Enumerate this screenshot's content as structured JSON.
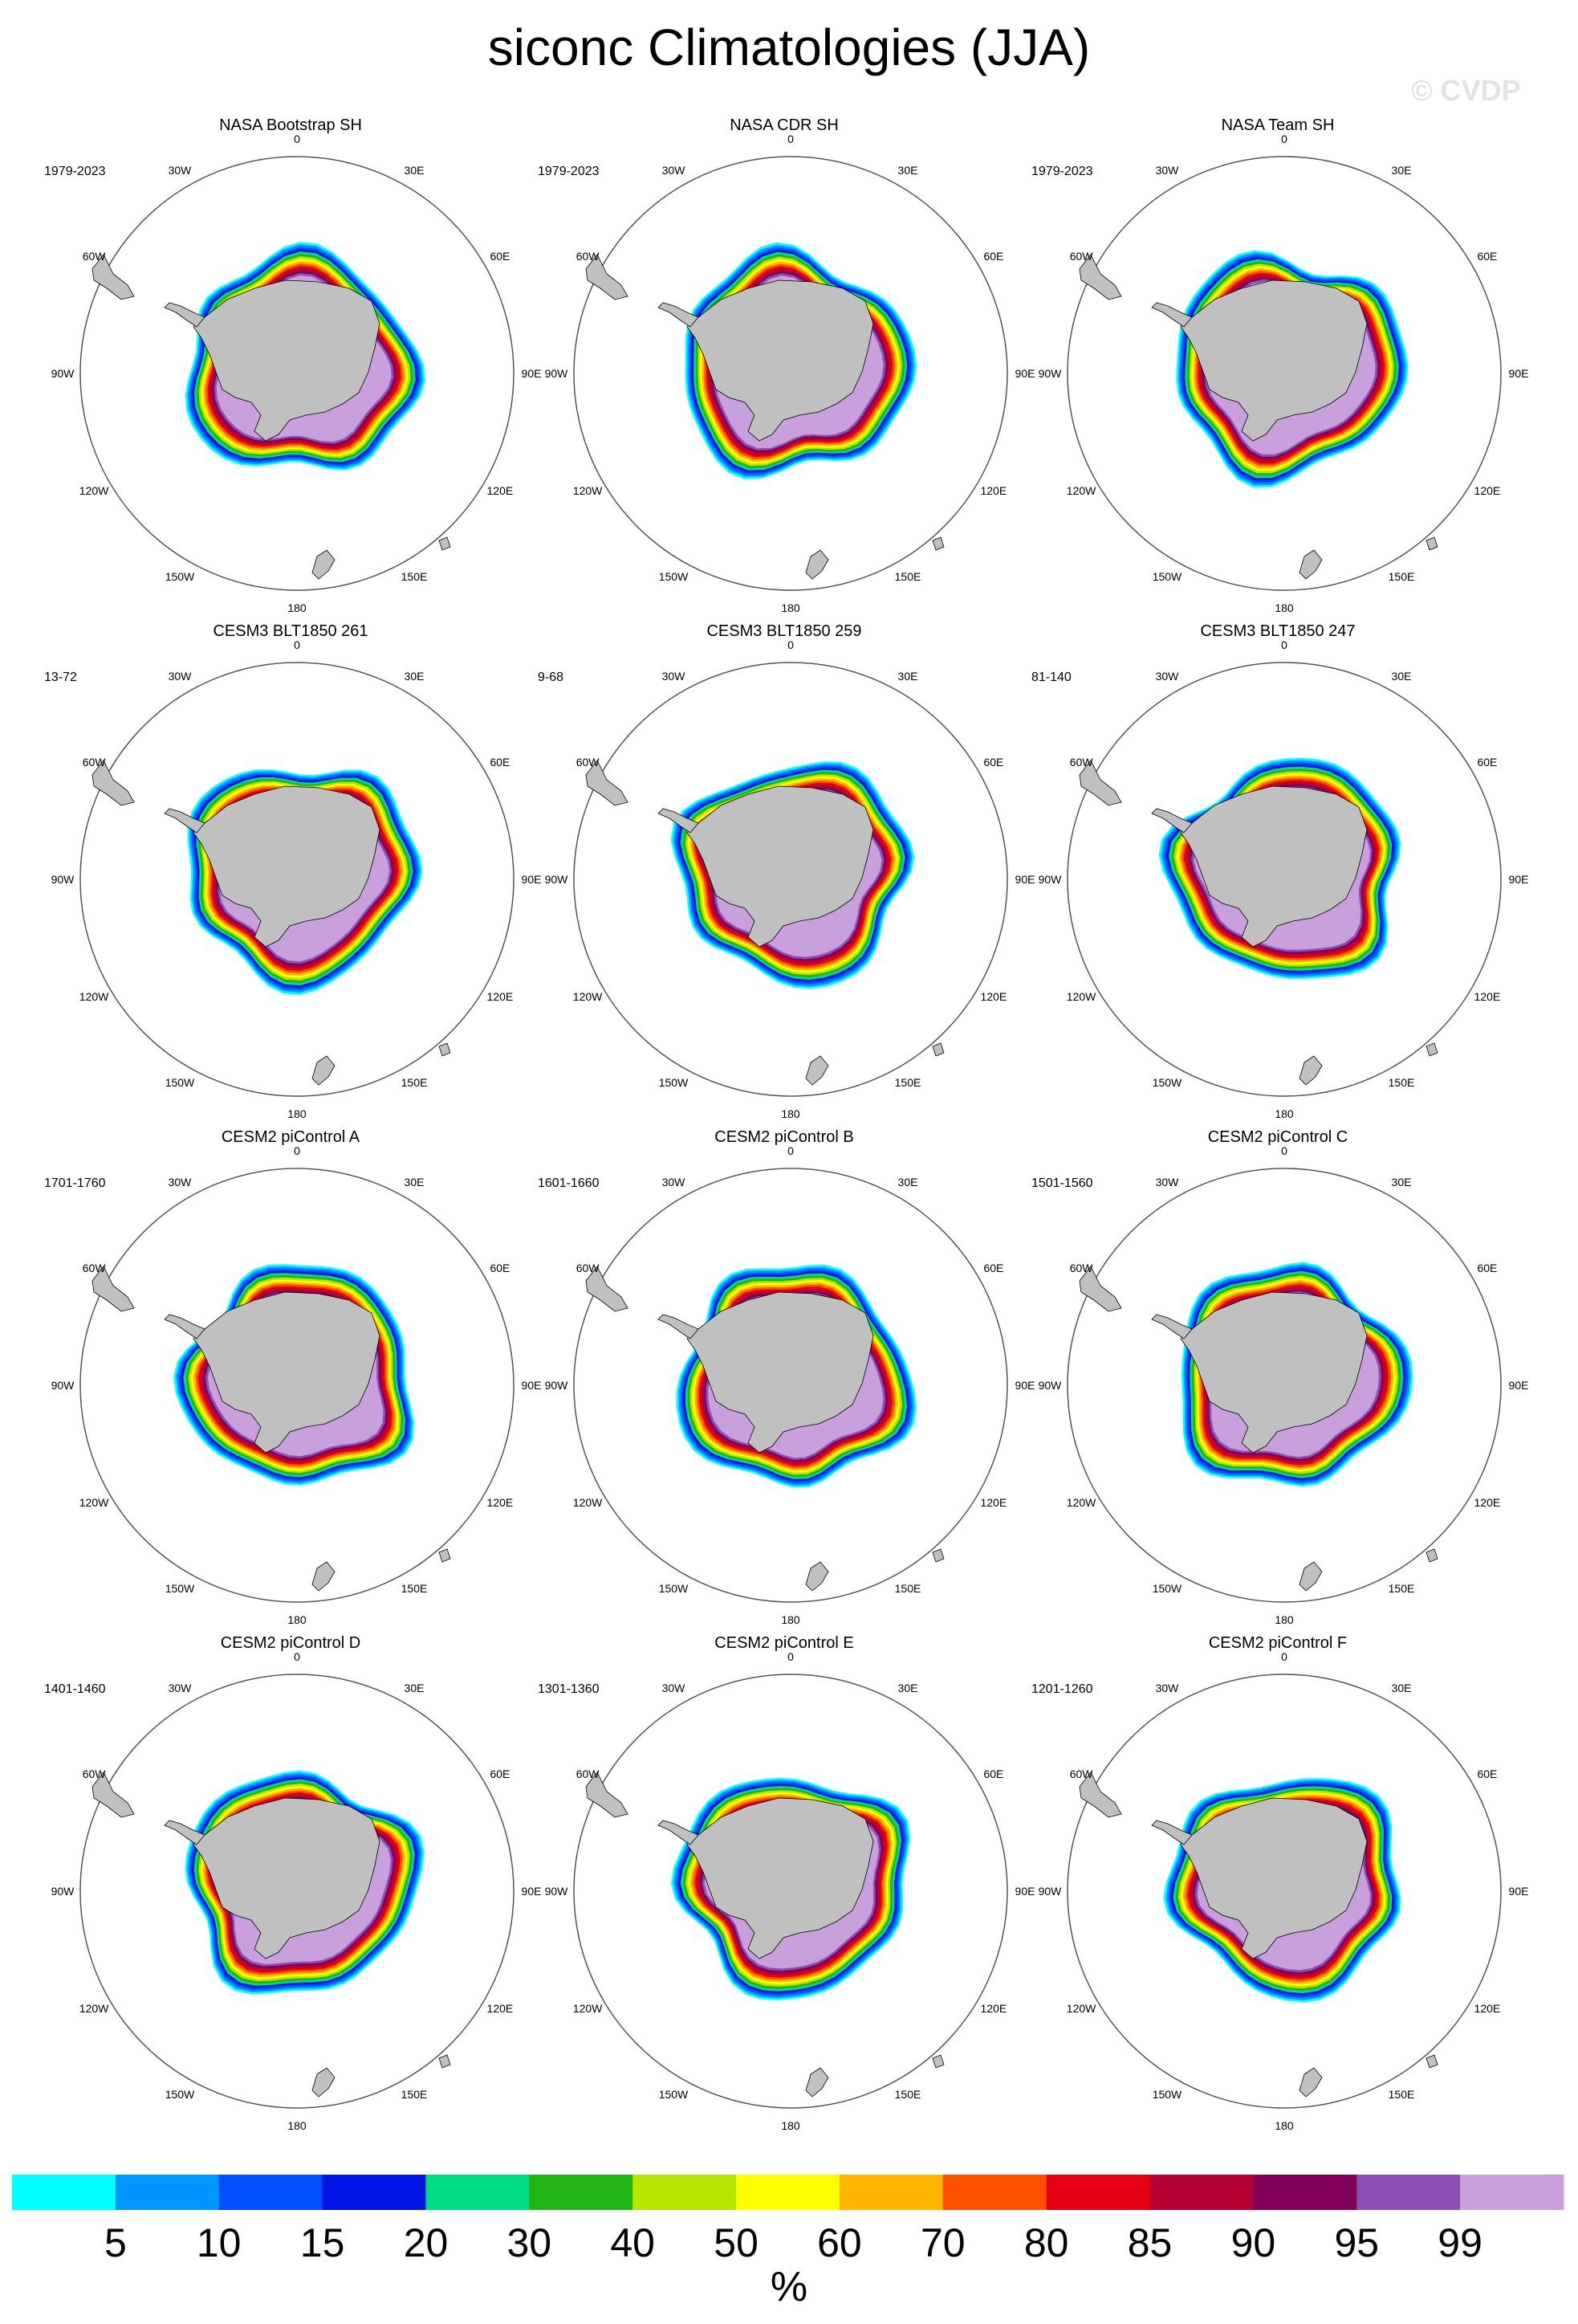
{
  "title": "siconc Climatologies (JJA)",
  "watermark": "© CVDP",
  "chart_data": {
    "type": "map",
    "projection": "south polar stereographic",
    "season": "JJA",
    "variable": "siconc",
    "panels": [
      {
        "title": "NASA Bootstrap SH",
        "years": "1979-2023"
      },
      {
        "title": "NASA CDR SH",
        "years": "1979-2023"
      },
      {
        "title": "NASA Team SH",
        "years": "1979-2023"
      },
      {
        "title": "CESM3 BLT1850 261",
        "years": "13-72"
      },
      {
        "title": "CESM3 BLT1850 259",
        "years": "9-68"
      },
      {
        "title": "CESM3 BLT1850 247",
        "years": "81-140"
      },
      {
        "title": "CESM2 piControl A",
        "years": "1701-1760"
      },
      {
        "title": "CESM2 piControl B",
        "years": "1601-1660"
      },
      {
        "title": "CESM2 piControl C",
        "years": "1501-1560"
      },
      {
        "title": "CESM2 piControl D",
        "years": "1401-1460"
      },
      {
        "title": "CESM2 piControl E",
        "years": "1301-1360"
      },
      {
        "title": "CESM2 piControl F",
        "years": "1201-1260"
      }
    ],
    "longitude_labels": [
      "0",
      "30E",
      "60E",
      "90E",
      "120E",
      "150E",
      "180",
      "150W",
      "120W",
      "90W",
      "60W",
      "30W"
    ],
    "colorbar": {
      "levels": [
        "5",
        "10",
        "15",
        "20",
        "30",
        "40",
        "50",
        "60",
        "70",
        "80",
        "85",
        "90",
        "95",
        "99"
      ],
      "colors": [
        "#00ffff",
        "#0096ff",
        "#0050ff",
        "#0014e6",
        "#00dc82",
        "#22b414",
        "#b4e600",
        "#ffff00",
        "#ffb400",
        "#ff5000",
        "#e60014",
        "#b40032",
        "#82005a",
        "#8c50b4",
        "#c8a0dc"
      ],
      "unit": "%"
    }
  },
  "colors": {
    "land": "#c0c0c0",
    "ocean": "#ffffff",
    "outline": "#000000"
  }
}
